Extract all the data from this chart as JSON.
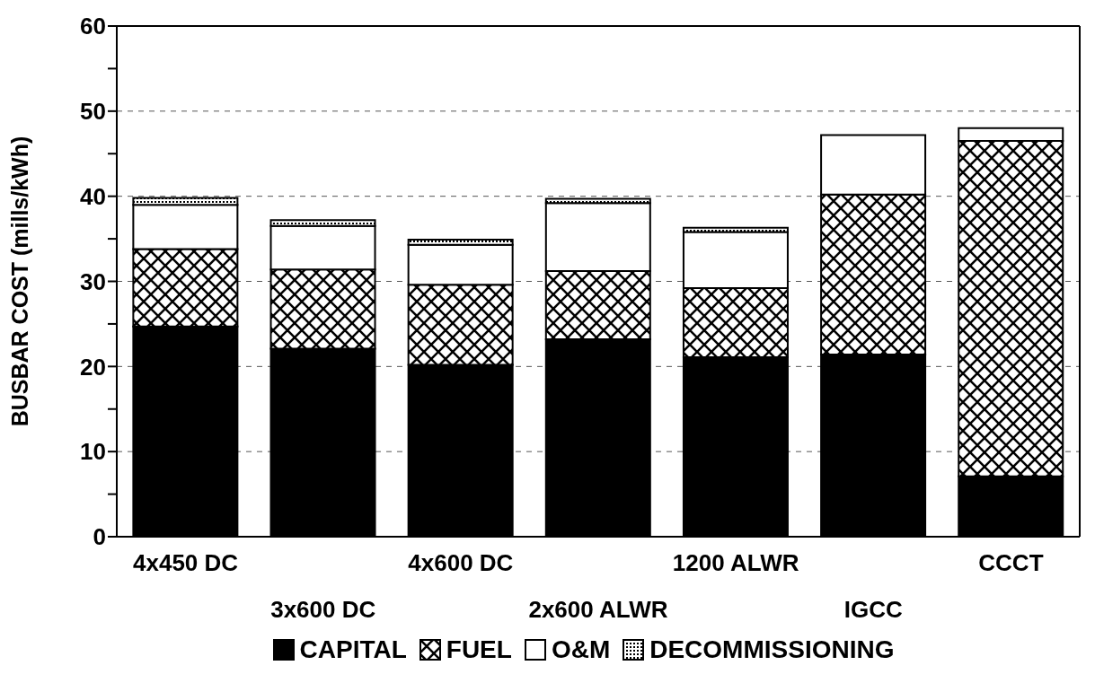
{
  "chart_data": {
    "type": "bar",
    "stacked": true,
    "ylabel": "BUSBAR COST (mills/kWh)",
    "categories": [
      "4x450 DC",
      "3x600 DC",
      "4x600 DC",
      "2x600 ALWR",
      "1200 ALWR",
      "IGCC",
      "CCCT"
    ],
    "series": [
      {
        "name": "CAPITAL",
        "color": "#000000",
        "values": [
          24.7,
          22.1,
          20.2,
          23.2,
          21.1,
          21.4,
          7.1
        ]
      },
      {
        "name": "FUEL",
        "color": "#000000",
        "values": [
          9.1,
          9.3,
          9.4,
          8.0,
          8.1,
          18.8,
          39.4
        ]
      },
      {
        "name": "O&M",
        "color": "#ffffff",
        "values": [
          5.2,
          5.1,
          4.7,
          8.0,
          6.6,
          7.0,
          1.5
        ]
      },
      {
        "name": "DECOMMISSIONING",
        "color": "#000000",
        "values": [
          0.8,
          0.7,
          0.6,
          0.5,
          0.5,
          0,
          0
        ]
      }
    ],
    "ylim": [
      0,
      60
    ],
    "yticks": [
      0,
      {
        "value": 5,
        "label": null
      },
      10,
      {
        "value": 15,
        "label": null
      },
      20,
      {
        "value": 25,
        "label": null
      },
      30,
      {
        "value": 35,
        "label": null
      },
      40,
      {
        "value": 45,
        "label": null
      },
      50,
      {
        "value": 55,
        "label": null
      },
      60
    ],
    "grid": "y",
    "legend": "bottom"
  }
}
